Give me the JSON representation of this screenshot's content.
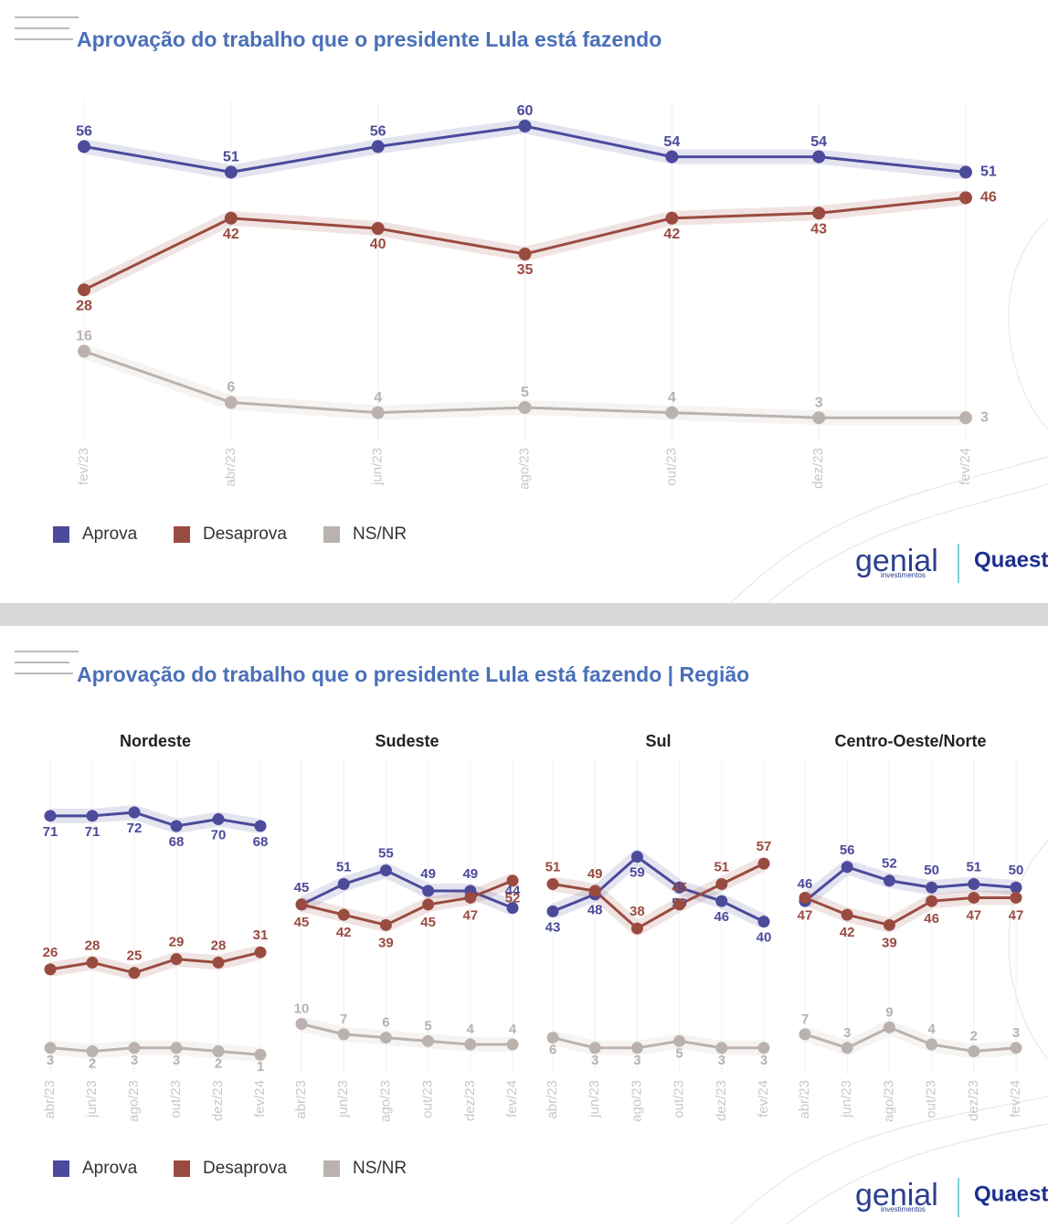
{
  "chart_data": [
    {
      "type": "line",
      "title": "Aprovação do trabalho que o presidente Lula está fazendo",
      "categories": [
        "fev/23",
        "abr/23",
        "jun/23",
        "ago/23",
        "out/23",
        "dez/23",
        "fev/24"
      ],
      "series": [
        {
          "name": "Aprova",
          "color": "#4b4a9b",
          "values": [
            56,
            51,
            56,
            60,
            54,
            54,
            51
          ]
        },
        {
          "name": "Desaprova",
          "color": "#9a4b40",
          "values": [
            28,
            42,
            40,
            35,
            42,
            43,
            46
          ]
        },
        {
          "name": "NS/NR",
          "color": "#bbb2ad",
          "values": [
            16,
            6,
            4,
            5,
            4,
            3,
            3
          ]
        }
      ]
    },
    {
      "type": "line",
      "title": "Nordeste",
      "categories": [
        "abr/23",
        "jun/23",
        "ago/23",
        "out/23",
        "dez/23",
        "fev/24"
      ],
      "series": [
        {
          "name": "Aprova",
          "color": "#4b4a9b",
          "values": [
            71,
            71,
            72,
            68,
            70,
            68
          ]
        },
        {
          "name": "Desaprova",
          "color": "#9a4b40",
          "values": [
            26,
            28,
            25,
            29,
            28,
            31
          ]
        },
        {
          "name": "NS/NR",
          "color": "#bbb2ad",
          "values": [
            3,
            2,
            3,
            3,
            2,
            1
          ]
        }
      ]
    },
    {
      "type": "line",
      "title": "Sudeste",
      "categories": [
        "abr/23",
        "jun/23",
        "ago/23",
        "out/23",
        "dez/23",
        "fev/24"
      ],
      "series": [
        {
          "name": "Aprova",
          "color": "#4b4a9b",
          "values": [
            45,
            51,
            55,
            49,
            49,
            44
          ]
        },
        {
          "name": "Desaprova",
          "color": "#9a4b40",
          "values": [
            45,
            42,
            39,
            45,
            47,
            52
          ]
        },
        {
          "name": "NS/NR",
          "color": "#bbb2ad",
          "values": [
            10,
            7,
            6,
            5,
            4,
            4
          ]
        }
      ]
    },
    {
      "type": "line",
      "title": "Sul",
      "categories": [
        "abr/23",
        "jun/23",
        "ago/23",
        "out/23",
        "dez/23",
        "fev/24"
      ],
      "series": [
        {
          "name": "Aprova",
          "color": "#4b4a9b",
          "values": [
            43,
            48,
            59,
            50,
            46,
            40
          ]
        },
        {
          "name": "Desaprova",
          "color": "#9a4b40",
          "values": [
            51,
            49,
            38,
            45,
            51,
            57
          ]
        },
        {
          "name": "NS/NR",
          "color": "#bbb2ad",
          "values": [
            6,
            3,
            3,
            5,
            3,
            3
          ]
        }
      ]
    },
    {
      "type": "line",
      "title": "Centro-Oeste/Norte",
      "categories": [
        "abr/23",
        "jun/23",
        "ago/23",
        "out/23",
        "dez/23",
        "fev/24"
      ],
      "series": [
        {
          "name": "Aprova",
          "color": "#4b4a9b",
          "values": [
            46,
            56,
            52,
            50,
            51,
            50
          ]
        },
        {
          "name": "Desaprova",
          "color": "#9a4b40",
          "values": [
            47,
            42,
            39,
            46,
            47,
            47
          ]
        },
        {
          "name": "NS/NR",
          "color": "#bbb2ad",
          "values": [
            7,
            3,
            9,
            4,
            2,
            3
          ]
        }
      ]
    }
  ],
  "region_title": "Aprovação do trabalho que o presidente Lula está fazendo | Região",
  "logos": {
    "genial": "genial",
    "genial_sub": "investimentos",
    "quaest": "Quaest"
  }
}
